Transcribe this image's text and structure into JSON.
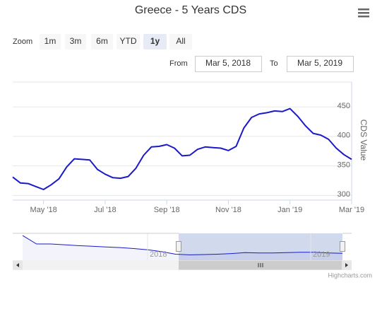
{
  "chart_data": {
    "type": "line",
    "title": "Greece - 5 Years CDS",
    "y_axis_title": "CDS Value",
    "zoom_label": "Zoom",
    "buttons": [
      "1m",
      "3m",
      "6m",
      "YTD",
      "1y",
      "All"
    ],
    "selected_button": 4,
    "from_label": "From",
    "from": "Mar 5, 2018",
    "to_label": "To",
    "to": "Mar 5, 2019",
    "credits": "Highcharts.com",
    "color": "#1a1ac8",
    "grid": true,
    "categories": [
      null,
      null,
      null,
      null,
      "May '18",
      null,
      null,
      null,
      null,
      null,
      null,
      null,
      "Jul '18",
      null,
      null,
      null,
      null,
      null,
      null,
      null,
      "Sep '18",
      null,
      null,
      null,
      null,
      null,
      null,
      null,
      "Nov '18",
      null,
      null,
      null,
      null,
      null,
      null,
      null,
      "Jan '19",
      null,
      null,
      null,
      null,
      null,
      null,
      null,
      "Mar '19"
    ],
    "values": [
      331,
      321,
      320,
      315,
      310,
      318,
      328,
      348,
      362,
      361,
      360,
      344,
      336,
      330,
      329,
      332,
      346,
      368,
      382,
      383,
      386,
      380,
      367,
      368,
      378,
      382,
      381,
      380,
      376,
      383,
      414,
      432,
      438,
      440,
      443,
      442,
      447,
      434,
      418,
      405,
      402,
      395,
      380,
      369,
      361
    ],
    "ylim": [
      292,
      492
    ],
    "yticks": [
      300,
      350,
      400,
      450
    ],
    "navigator": {
      "values": [
        1030,
        764,
        764,
        740,
        710,
        690,
        670,
        650,
        620,
        580,
        520,
        440,
        420,
        430,
        440,
        460,
        490,
        480,
        480,
        490,
        500,
        500,
        480,
        470
      ],
      "ylim": [
        250,
        1100
      ],
      "labels": [
        "2018",
        "2019"
      ]
    }
  }
}
